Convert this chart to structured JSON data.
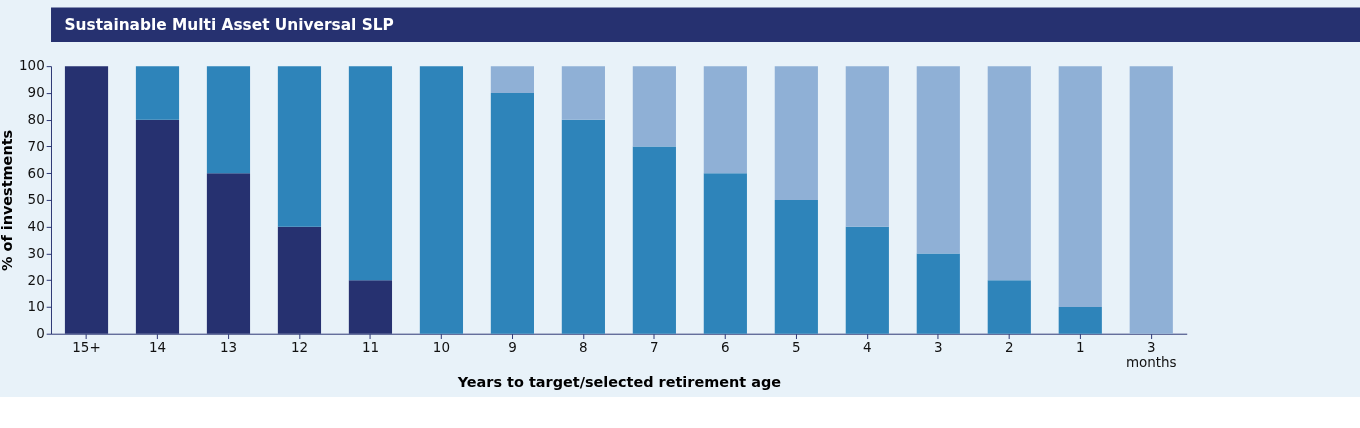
{
  "chart_data": {
    "type": "bar",
    "title": "Sustainable Multi Asset Universal SLP",
    "xlabel": "Years to target/selected retirement age",
    "ylabel": "% of investments",
    "categories": [
      "15+",
      "14",
      "13",
      "12",
      "11",
      "10",
      "9",
      "8",
      "7",
      "6",
      "5",
      "4",
      "3",
      "2",
      "1",
      "3\nmonths"
    ],
    "stacked": true,
    "ylim": [
      0,
      100
    ],
    "yticks": [
      0,
      10,
      20,
      30,
      40,
      50,
      60,
      70,
      80,
      90,
      100
    ],
    "grid": false,
    "legend": false,
    "series": [
      {
        "color": "#263170",
        "values": [
          100,
          80,
          60,
          40,
          20,
          0,
          0,
          0,
          0,
          0,
          0,
          0,
          0,
          0,
          0,
          0
        ]
      },
      {
        "color": "#2e84ba",
        "values": [
          0,
          20,
          40,
          60,
          80,
          100,
          90,
          80,
          70,
          60,
          50,
          40,
          30,
          20,
          10,
          0
        ]
      },
      {
        "color": "#8fb0d6",
        "values": [
          0,
          0,
          0,
          0,
          0,
          0,
          10,
          20,
          30,
          40,
          50,
          60,
          70,
          80,
          90,
          100
        ]
      }
    ]
  }
}
